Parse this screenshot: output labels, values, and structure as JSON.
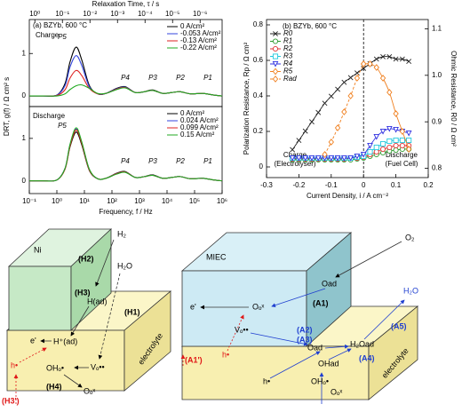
{
  "chart_data": [
    {
      "type": "line",
      "legend": "upper right",
      "annotations": [
        "(a) BZYb, 600 °C",
        "Charge",
        "P5",
        "P4",
        "P3",
        "P2",
        "P1"
      ],
      "ylabel": "DRT, g(f) / Ω cm² s",
      "x2label": "Relaxation Time, τ / s",
      "xlog": true,
      "xlim": [
        0.1,
        1000000
      ],
      "x2lim": [
        1.59,
        1.59e-07
      ],
      "x2ticks": [
        {
          "value": 1,
          "label": "10⁰"
        },
        {
          "value": 0.1,
          "label": "10⁻¹"
        },
        {
          "value": 0.01,
          "label": "10⁻²"
        },
        {
          "value": 0.001,
          "label": "10⁻³"
        },
        {
          "value": 0.0001,
          "label": "10⁻⁴"
        },
        {
          "value": 1e-05,
          "label": "10⁻⁵"
        },
        {
          "value": 1e-06,
          "label": "10⁻⁶"
        }
      ],
      "ylim": [
        -0.25,
        1.8
      ],
      "yticks": [
        0,
        1
      ],
      "x": [
        0.1,
        0.3,
        1,
        2,
        3,
        5,
        8,
        15,
        30,
        60,
        150,
        300,
        700,
        1500,
        3000,
        7000,
        15000,
        30000,
        70000,
        200000,
        500000,
        1000000
      ],
      "series": [
        {
          "name": "0 A/cm²",
          "color": "#000000",
          "values": [
            0,
            0,
            0.02,
            0.3,
            0.8,
            1.15,
            0.85,
            0.25,
            0.05,
            0.06,
            0.18,
            0.22,
            0.08,
            0.1,
            0.14,
            0.06,
            0.08,
            0.1,
            0.05,
            0.06,
            0.02,
            0
          ]
        },
        {
          "name": "-0.053 A/cm²",
          "color": "#3344dd",
          "values": [
            0,
            0,
            0.02,
            0.25,
            0.68,
            0.95,
            0.72,
            0.22,
            0.05,
            0.06,
            0.17,
            0.21,
            0.08,
            0.1,
            0.13,
            0.06,
            0.08,
            0.1,
            0.05,
            0.06,
            0.02,
            0
          ]
        },
        {
          "name": "-0.13 A/cm²",
          "color": "#dd2222",
          "values": [
            0,
            0,
            0.01,
            0.15,
            0.42,
            0.6,
            0.48,
            0.18,
            0.05,
            0.06,
            0.16,
            0.2,
            0.08,
            0.1,
            0.13,
            0.06,
            0.08,
            0.1,
            0.05,
            0.06,
            0.02,
            0
          ]
        },
        {
          "name": "-0.22 A/cm²",
          "color": "#22aa22",
          "values": [
            0,
            0,
            0,
            0.05,
            0.15,
            0.24,
            0.26,
            0.18,
            0.06,
            0.06,
            0.15,
            0.19,
            0.08,
            0.1,
            0.13,
            0.06,
            0.08,
            0.1,
            0.05,
            0.06,
            0.02,
            0
          ]
        }
      ]
    },
    {
      "type": "line",
      "legend": "upper right",
      "annotations": [
        "Discharge",
        "P5",
        "P4",
        "P3",
        "P2",
        "P1"
      ],
      "xlabel": "Frequency, f / Hz",
      "xlog": true,
      "xlim": [
        0.1,
        1000000
      ],
      "xticks": [
        {
          "value": 0.1,
          "label": "10⁻¹"
        },
        {
          "value": 1,
          "label": "10⁰"
        },
        {
          "value": 10,
          "label": "10¹"
        },
        {
          "value": 100,
          "label": "10²"
        },
        {
          "value": 1000,
          "label": "10³"
        },
        {
          "value": 10000,
          "label": "10⁴"
        },
        {
          "value": 100000,
          "label": "10⁵"
        },
        {
          "value": 1000000,
          "label": "10⁶"
        }
      ],
      "ylim": [
        -0.3,
        1.75
      ],
      "yticks": [
        0,
        1
      ],
      "x": [
        0.1,
        0.3,
        1,
        2,
        3,
        5,
        8,
        15,
        30,
        60,
        150,
        300,
        700,
        1500,
        3000,
        7000,
        15000,
        30000,
        70000,
        200000,
        500000,
        1000000
      ],
      "series": [
        {
          "name": "0 A/cm²",
          "color": "#000000",
          "values": [
            0,
            0,
            0.02,
            0.3,
            0.8,
            1.15,
            0.85,
            0.25,
            0.05,
            0.06,
            0.18,
            0.22,
            0.08,
            0.1,
            0.14,
            0.06,
            0.08,
            0.1,
            0.05,
            0.06,
            0.02,
            0
          ]
        },
        {
          "name": "0.024 A/cm²",
          "color": "#3344dd",
          "values": [
            0,
            0,
            0.02,
            0.3,
            0.85,
            1.22,
            0.9,
            0.27,
            0.05,
            0.06,
            0.17,
            0.21,
            0.08,
            0.1,
            0.13,
            0.06,
            0.08,
            0.1,
            0.05,
            0.06,
            0.02,
            0
          ]
        },
        {
          "name": "0.099 A/cm²",
          "color": "#dd2222",
          "values": [
            0,
            0,
            0.02,
            0.28,
            0.82,
            1.2,
            0.88,
            0.26,
            0.05,
            0.06,
            0.17,
            0.21,
            0.08,
            0.1,
            0.13,
            0.06,
            0.08,
            0.1,
            0.05,
            0.06,
            0.02,
            0
          ]
        },
        {
          "name": "0.15 A/cm²",
          "color": "#22aa22",
          "values": [
            0,
            0,
            0.02,
            0.3,
            0.86,
            1.25,
            0.92,
            0.28,
            0.05,
            0.06,
            0.16,
            0.2,
            0.08,
            0.1,
            0.13,
            0.06,
            0.08,
            0.1,
            0.05,
            0.06,
            0.02,
            0
          ]
        }
      ]
    },
    {
      "type": "line",
      "legend": "upper left",
      "annotations": [
        "(b) BZYb, 600 °C",
        "Charge",
        "(Electrolyser)",
        "Discharge",
        "(Fuel Cell)"
      ],
      "xlabel": "Current Density, i / A cm⁻²",
      "ylabel": "Polarization Resistance, Rp / Ω cm²",
      "y2label": "Ohmic Resistance, R0 / Ω cm²",
      "xlim": [
        -0.3,
        0.2
      ],
      "xticks": [
        -0.3,
        -0.2,
        -0.1,
        0,
        0.1,
        0.2
      ],
      "ylim": [
        -0.06,
        0.83
      ],
      "yticks": [
        0,
        0.2,
        0.4,
        0.6,
        0.8
      ],
      "y2lim": [
        0.78,
        1.12
      ],
      "y2ticks": [
        0.8,
        0.9,
        {
          "value": 1,
          "label": "1.0"
        },
        1.1
      ],
      "vline": 0,
      "x": [
        -0.22,
        -0.2,
        -0.18,
        -0.16,
        -0.14,
        -0.12,
        -0.1,
        -0.08,
        -0.06,
        -0.04,
        -0.02,
        0,
        0.02,
        0.04,
        0.06,
        0.08,
        0.1,
        0.12,
        0.14
      ],
      "series": [
        {
          "name": "R0",
          "color": "#222222",
          "marker": "x",
          "axis": "y2",
          "values": [
            0.84,
            0.86,
            0.88,
            0.9,
            0.92,
            0.94,
            0.955,
            0.97,
            0.985,
            0.995,
            1.005,
            1.015,
            1.025,
            1.035,
            1.04,
            1.04,
            1.035,
            1.035,
            1.03
          ]
        },
        {
          "name": "R1",
          "color": "#2e9b2e",
          "marker": "circle",
          "values": [
            0.04,
            0.04,
            0.04,
            0.04,
            0.04,
            0.04,
            0.04,
            0.04,
            0.04,
            0.04,
            0.045,
            0.05,
            0.06,
            0.07,
            0.08,
            0.09,
            0.095,
            0.1,
            0.1
          ]
        },
        {
          "name": "R2",
          "color": "#e03030",
          "marker": "circle",
          "values": [
            0.045,
            0.045,
            0.045,
            0.045,
            0.045,
            0.045,
            0.045,
            0.045,
            0.045,
            0.05,
            0.05,
            0.055,
            0.07,
            0.085,
            0.1,
            0.11,
            0.12,
            0.12,
            0.12
          ]
        },
        {
          "name": "R3",
          "color": "#20c8dc",
          "marker": "square",
          "values": [
            0.05,
            0.05,
            0.05,
            0.05,
            0.05,
            0.05,
            0.05,
            0.05,
            0.05,
            0.05,
            0.055,
            0.06,
            0.085,
            0.11,
            0.13,
            0.145,
            0.15,
            0.15,
            0.15
          ]
        },
        {
          "name": "R4",
          "color": "#3030e0",
          "marker": "triangle",
          "values": [
            0.05,
            0.05,
            0.05,
            0.05,
            0.05,
            0.05,
            0.05,
            0.05,
            0.05,
            0.05,
            0.06,
            0.07,
            0.12,
            0.17,
            0.2,
            0.215,
            0.21,
            0.2,
            0.19
          ]
        },
        {
          "name": "R5",
          "color": "#f08020",
          "marker": "diamond",
          "values": [
            null,
            null,
            null,
            null,
            null,
            null,
            null,
            null,
            null,
            null,
            null,
            0.58,
            0.58,
            0.56,
            0.5,
            0.42,
            0.3,
            0.2,
            0.1
          ]
        },
        {
          "name": "Rad",
          "color": "#f08020",
          "marker": "diamond",
          "linestyle": "dashed",
          "values": [
            null,
            null,
            null,
            null,
            null,
            0.07,
            0.14,
            0.22,
            0.31,
            0.4,
            0.5,
            0.58,
            null,
            null,
            null,
            null,
            null,
            null,
            null
          ]
        }
      ]
    }
  ],
  "diagrams": [
    {
      "labels": [
        "Ni",
        "(H2)",
        "H₂",
        "H₂O",
        "(H3)",
        "H(ad)",
        "(H1)",
        "e'",
        "H⁺(ad)",
        "electrolyte",
        "h•",
        "OHₒ•",
        "Vₒ••",
        "(H4)",
        "Oₒˣ",
        "(H3')"
      ]
    },
    {
      "labels": [
        "MIEC",
        "O₂",
        "Oad",
        "(A1)",
        "e'",
        "Oₒˣ",
        "(A2)",
        "Vₒ••",
        "Oad",
        "(A3)",
        "H₂O",
        "(A5)",
        "H₂Oad",
        "(A4)",
        "OHad",
        "h•",
        "h•",
        "(A1')",
        "OHₒ•",
        "Oₒˣ",
        "electrolyte"
      ]
    }
  ]
}
